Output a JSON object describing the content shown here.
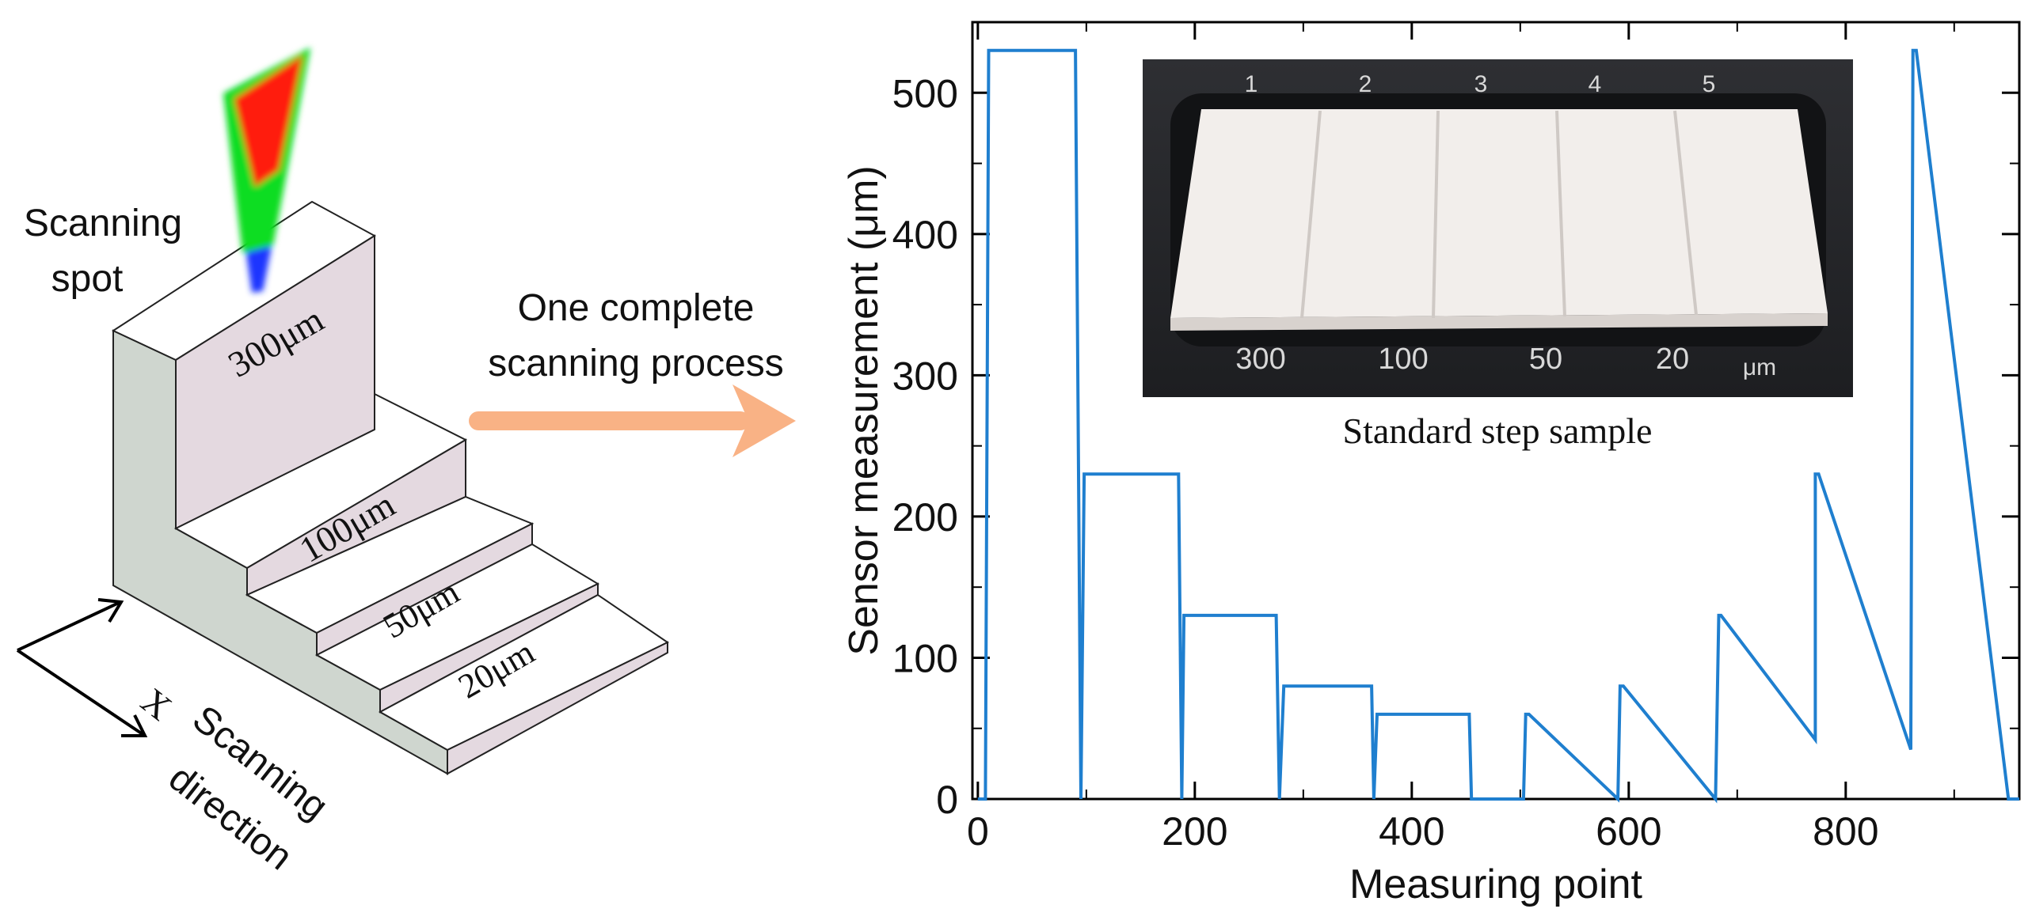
{
  "diagram": {
    "scanning_spot_label": [
      "Scanning",
      "spot"
    ],
    "step_labels": [
      "300μm",
      "100μm",
      "50μm",
      "20μm"
    ],
    "axis_letter": "X",
    "direction_label": [
      "Scanning",
      "direction"
    ],
    "process_label": [
      "One complete",
      "scanning process"
    ],
    "arrow_color": "#f9b285",
    "face_top_color": "#ffffff",
    "face_riser_color": "#e4d9e0",
    "face_side_color": "#cfd6cf"
  },
  "inset": {
    "top_numbers": [
      "1",
      "2",
      "3",
      "4",
      "5"
    ],
    "bottom_labels": [
      "300",
      "100",
      "50",
      "20",
      "μm"
    ],
    "caption": "Standard step sample"
  },
  "chart_data": {
    "type": "line",
    "xlabel": "Measuring point",
    "ylabel": "Sensor measurement (μm)",
    "xlim": [
      -5,
      960
    ],
    "ylim": [
      0,
      550
    ],
    "x_ticks": [
      0,
      200,
      400,
      600,
      800
    ],
    "y_ticks": [
      0,
      100,
      200,
      300,
      400,
      500
    ],
    "line_color": "#1f7fcf",
    "series": [
      {
        "x": [
          0,
          7,
          10,
          90,
          95,
          98,
          185,
          188,
          190,
          275,
          278,
          282,
          363,
          365,
          368,
          453,
          455,
          503,
          505,
          508,
          590,
          592,
          595,
          680,
          683,
          685,
          772,
          772,
          775,
          860,
          862,
          865,
          950,
          952,
          960
        ],
        "y": [
          0,
          0,
          530,
          530,
          0,
          230,
          230,
          0,
          130,
          130,
          0,
          80,
          80,
          0,
          60,
          60,
          0,
          0,
          60,
          60,
          0,
          80,
          80,
          0,
          130,
          130,
          42,
          230,
          230,
          35,
          530,
          530,
          0,
          0,
          0
        ]
      }
    ]
  }
}
